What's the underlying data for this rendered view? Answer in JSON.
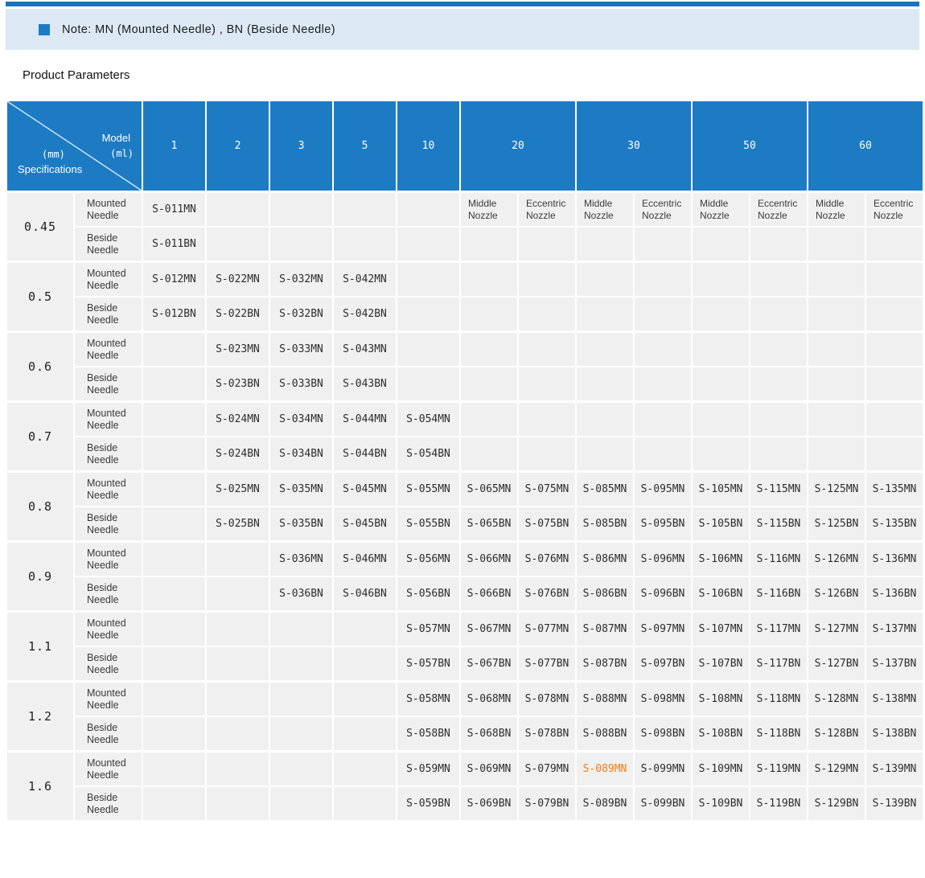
{
  "colors": {
    "accent_blue": "#1d7bc4",
    "top_bar_blue": "#1a73b9",
    "note_band_bg": "#dce9f5",
    "body_cell_bg": "#f0f0f0",
    "highlight_orange": "#f77d0d"
  },
  "note": {
    "bullet_icon": "blue-square-icon",
    "text": "Note: MN (Mounted Needle) , BN (Beside Needle)"
  },
  "section_title": "Product Parameters",
  "table": {
    "corner": {
      "top_label": "Model",
      "top_unit": "(ml)",
      "bottom_unit": "(mm)",
      "bottom_label": "Specifications"
    },
    "model_columns": [
      {
        "label": "1"
      },
      {
        "label": "2"
      },
      {
        "label": "3"
      },
      {
        "label": "5"
      },
      {
        "label": "10"
      },
      {
        "label": "20"
      },
      {
        "label": "30"
      },
      {
        "label": "50"
      },
      {
        "label": "60"
      }
    ],
    "row_labels": {
      "mn": "Mounted Needle",
      "bn": "Beside Needle"
    },
    "highlight": "S-089MN",
    "groups": [
      {
        "spec": "0.45",
        "mn": [
          "S-011MN",
          "",
          "",
          "",
          "",
          "Middle Nozzle",
          "Eccentric Nozzle",
          "Middle Nozzle",
          "Eccentric Nozzle",
          "Middle Nozzle",
          "Eccentric Nozzle",
          "Middle Nozzle",
          "Eccentric Nozzle"
        ],
        "bn": [
          "S-011BN",
          "",
          "",
          "",
          "",
          "",
          "",
          "",
          "",
          "",
          "",
          "",
          ""
        ]
      },
      {
        "spec": "0.5",
        "mn": [
          "S-012MN",
          "S-022MN",
          "S-032MN",
          "S-042MN",
          "",
          "",
          "",
          "",
          "",
          "",
          "",
          "",
          ""
        ],
        "bn": [
          "S-012BN",
          "S-022BN",
          "S-032BN",
          "S-042BN",
          "",
          "",
          "",
          "",
          "",
          "",
          "",
          "",
          ""
        ]
      },
      {
        "spec": "0.6",
        "mn": [
          "",
          "S-023MN",
          "S-033MN",
          "S-043MN",
          "",
          "",
          "",
          "",
          "",
          "",
          "",
          "",
          ""
        ],
        "bn": [
          "",
          "S-023BN",
          "S-033BN",
          "S-043BN",
          "",
          "",
          "",
          "",
          "",
          "",
          "",
          "",
          ""
        ]
      },
      {
        "spec": "0.7",
        "mn": [
          "",
          "S-024MN",
          "S-034MN",
          "S-044MN",
          "S-054MN",
          "",
          "",
          "",
          "",
          "",
          "",
          "",
          ""
        ],
        "bn": [
          "",
          "S-024BN",
          "S-034BN",
          "S-044BN",
          "S-054BN",
          "",
          "",
          "",
          "",
          "",
          "",
          "",
          ""
        ]
      },
      {
        "spec": "0.8",
        "mn": [
          "",
          "S-025MN",
          "S-035MN",
          "S-045MN",
          "S-055MN",
          "S-065MN",
          "S-075MN",
          "S-085MN",
          "S-095MN",
          "S-105MN",
          "S-115MN",
          "S-125MN",
          "S-135MN"
        ],
        "bn": [
          "",
          "S-025BN",
          "S-035BN",
          "S-045BN",
          "S-055BN",
          "S-065BN",
          "S-075BN",
          "S-085BN",
          "S-095BN",
          "S-105BN",
          "S-115BN",
          "S-125BN",
          "S-135BN"
        ]
      },
      {
        "spec": "0.9",
        "mn": [
          "",
          "",
          "S-036MN",
          "S-046MN",
          "S-056MN",
          "S-066MN",
          "S-076MN",
          "S-086MN",
          "S-096MN",
          "S-106MN",
          "S-116MN",
          "S-126MN",
          "S-136MN"
        ],
        "bn": [
          "",
          "",
          "S-036BN",
          "S-046BN",
          "S-056BN",
          "S-066BN",
          "S-076BN",
          "S-086BN",
          "S-096BN",
          "S-106BN",
          "S-116BN",
          "S-126BN",
          "S-136BN"
        ]
      },
      {
        "spec": "1.1",
        "mn": [
          "",
          "",
          "",
          "",
          "S-057MN",
          "S-067MN",
          "S-077MN",
          "S-087MN",
          "S-097MN",
          "S-107MN",
          "S-117MN",
          "S-127MN",
          "S-137MN"
        ],
        "bn": [
          "",
          "",
          "",
          "",
          "S-057BN",
          "S-067BN",
          "S-077BN",
          "S-087BN",
          "S-097BN",
          "S-107BN",
          "S-117BN",
          "S-127BN",
          "S-137BN"
        ]
      },
      {
        "spec": "1.2",
        "mn": [
          "",
          "",
          "",
          "",
          "S-058MN",
          "S-068MN",
          "S-078MN",
          "S-088MN",
          "S-098MN",
          "S-108MN",
          "S-118MN",
          "S-128MN",
          "S-138MN"
        ],
        "bn": [
          "",
          "",
          "",
          "",
          "S-058BN",
          "S-068BN",
          "S-078BN",
          "S-088BN",
          "S-098BN",
          "S-108BN",
          "S-118BN",
          "S-128BN",
          "S-138BN"
        ]
      },
      {
        "spec": "1.6",
        "mn": [
          "",
          "",
          "",
          "",
          "S-059MN",
          "S-069MN",
          "S-079MN",
          "S-089MN",
          "S-099MN",
          "S-109MN",
          "S-119MN",
          "S-129MN",
          "S-139MN"
        ],
        "bn": [
          "",
          "",
          "",
          "",
          "S-059BN",
          "S-069BN",
          "S-079BN",
          "S-089BN",
          "S-099BN",
          "S-109BN",
          "S-119BN",
          "S-129BN",
          "S-139BN"
        ]
      }
    ]
  }
}
